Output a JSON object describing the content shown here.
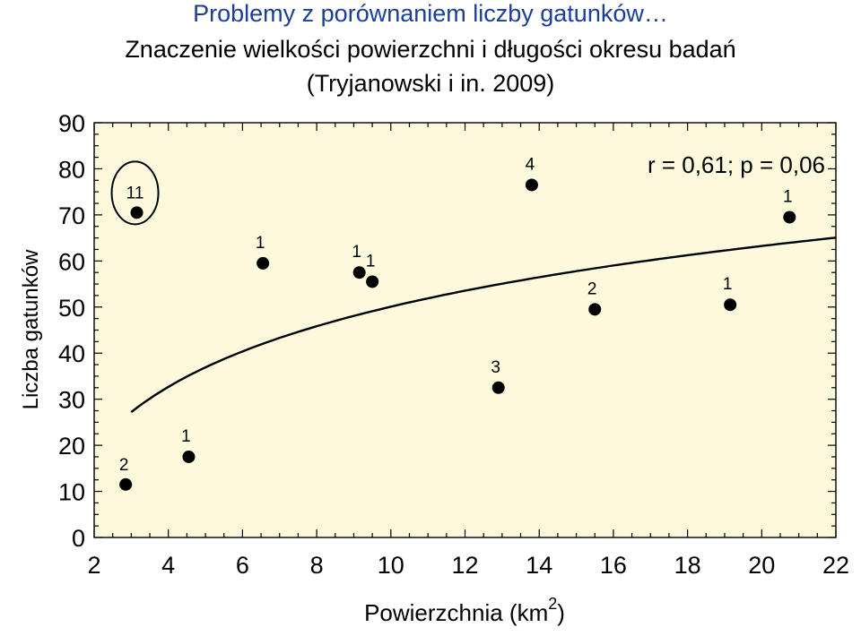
{
  "titles": {
    "title": "Problemy z porównaniem liczby gatunków…",
    "subtitle": "Znaczenie wielkości powierzchni i długości okresu badań",
    "citation": "(Tryjanowski i in. 2009)"
  },
  "chart_data": {
    "type": "scatter",
    "xlabel": "Powierzchnia (km",
    "xlabel_sup": "2",
    "xlabel_end": ")",
    "ylabel": "Liczba gatunków",
    "xlim": [
      2,
      22
    ],
    "ylim": [
      0,
      90
    ],
    "xticks": [
      2,
      4,
      6,
      8,
      10,
      12,
      14,
      16,
      18,
      20,
      22
    ],
    "yticks": [
      0,
      10,
      20,
      30,
      40,
      50,
      60,
      70,
      80,
      90
    ],
    "annotation": "r = 0,61; p = 0,06",
    "grid": false,
    "plot_bg": "#fdf9dc",
    "point_color": "#000000",
    "title_color": "#1a3f9a",
    "points": [
      {
        "x": 2.85,
        "y": 11.5,
        "label": "2"
      },
      {
        "x": 3.15,
        "y": 70.5,
        "label": "11",
        "circled": true
      },
      {
        "x": 4.55,
        "y": 17.5,
        "label": "1"
      },
      {
        "x": 6.55,
        "y": 59.5,
        "label": "1"
      },
      {
        "x": 9.15,
        "y": 57.5,
        "label": "1"
      },
      {
        "x": 9.5,
        "y": 55.5,
        "label": "1"
      },
      {
        "x": 12.9,
        "y": 32.5,
        "label": "3"
      },
      {
        "x": 13.8,
        "y": 76.5,
        "label": "4"
      },
      {
        "x": 15.5,
        "y": 49.5,
        "label": "2"
      },
      {
        "x": 19.15,
        "y": 50.5,
        "label": "1"
      },
      {
        "x": 20.75,
        "y": 69.5,
        "label": "1"
      }
    ],
    "trend": {
      "type": "logarithmic",
      "x_range": [
        3.0,
        22.0
      ],
      "a": 6.33,
      "b": 19.0
    }
  }
}
